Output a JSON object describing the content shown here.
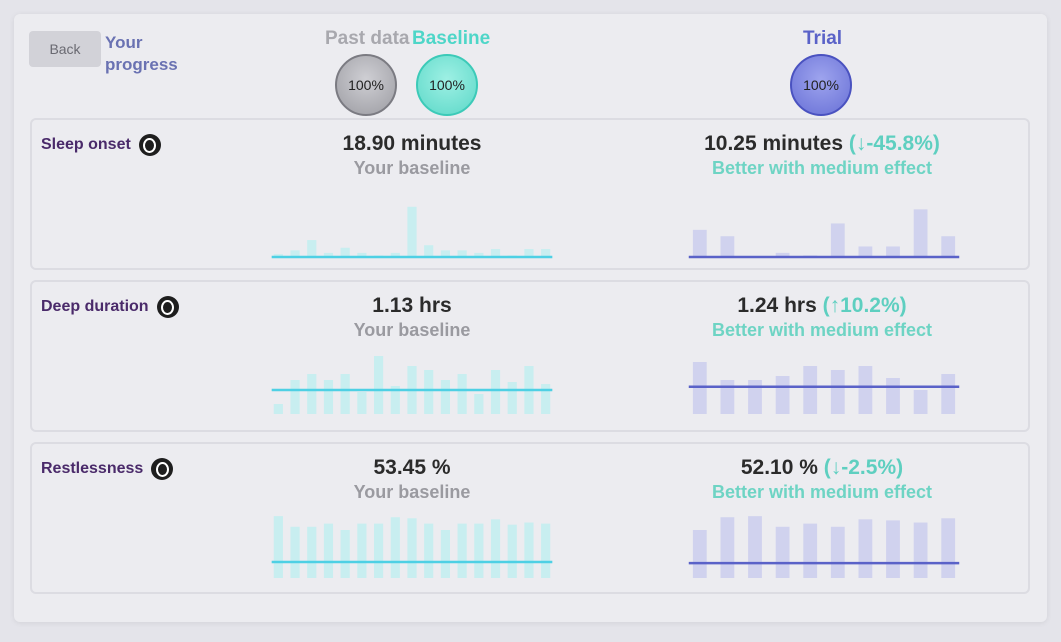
{
  "header": {
    "back_label": "Back",
    "title": "Your progress",
    "past_label": "Past data",
    "baseline_label": "Baseline",
    "trial_label": "Trial",
    "past_pct": "100%",
    "baseline_pct": "100%",
    "trial_pct": "100%"
  },
  "colors": {
    "baseline_bar": "#c8eef0",
    "baseline_line": "#4ed0e4",
    "trial_bar": "#d0d2ee",
    "trial_line": "#5a62c8"
  },
  "metrics": [
    {
      "name": "Sleep onset",
      "baseline_value": "18.90 minutes",
      "baseline_caption": "Your baseline",
      "trial_value": "10.25 minutes",
      "trial_delta": "(↓-45.8%)",
      "trial_caption": "Better with medium effect",
      "baseline_bars": [
        3,
        6,
        14,
        4,
        8,
        4,
        2,
        4,
        40,
        10,
        6,
        6,
        4,
        7,
        2,
        7,
        7
      ],
      "baseline_mean": 0,
      "baseline_max": 50,
      "trial_bars": [
        22,
        17,
        0,
        4,
        2,
        27,
        9,
        9,
        38,
        17
      ],
      "trial_mean": 0,
      "trial_max": 50
    },
    {
      "name": "Deep duration",
      "baseline_value": "1.13 hrs",
      "baseline_caption": "Your baseline",
      "trial_value": "1.24 hrs",
      "trial_delta": "(↑10.2%)",
      "trial_caption": "Better with medium effect",
      "baseline_bars": [
        0.25,
        0.85,
        1.0,
        0.85,
        1.0,
        0.55,
        1.45,
        0.7,
        1.2,
        1.1,
        0.85,
        1.0,
        0.5,
        1.1,
        0.8,
        1.2,
        0.75
      ],
      "baseline_mean": 0.6,
      "baseline_max": 1.6,
      "trial_bars": [
        1.3,
        0.85,
        0.85,
        0.95,
        1.2,
        1.1,
        1.2,
        0.9,
        0.6,
        1.0
      ],
      "trial_mean": 0.68,
      "trial_max": 1.6
    },
    {
      "name": "Restlessness",
      "baseline_value": "53.45 %",
      "baseline_caption": "Your baseline",
      "trial_value": "52.10 %",
      "trial_delta": "(↓-2.5%)",
      "trial_caption": "Better with medium effect",
      "baseline_bars": [
        58,
        48,
        48,
        51,
        45,
        51,
        51,
        57,
        56,
        51,
        45,
        51,
        51,
        55,
        50,
        52,
        51
      ],
      "baseline_mean": 15,
      "baseline_max": 60,
      "trial_bars": [
        45,
        57,
        58,
        48,
        51,
        48,
        55,
        54,
        52,
        56
      ],
      "trial_mean": 14,
      "trial_max": 60
    }
  ]
}
